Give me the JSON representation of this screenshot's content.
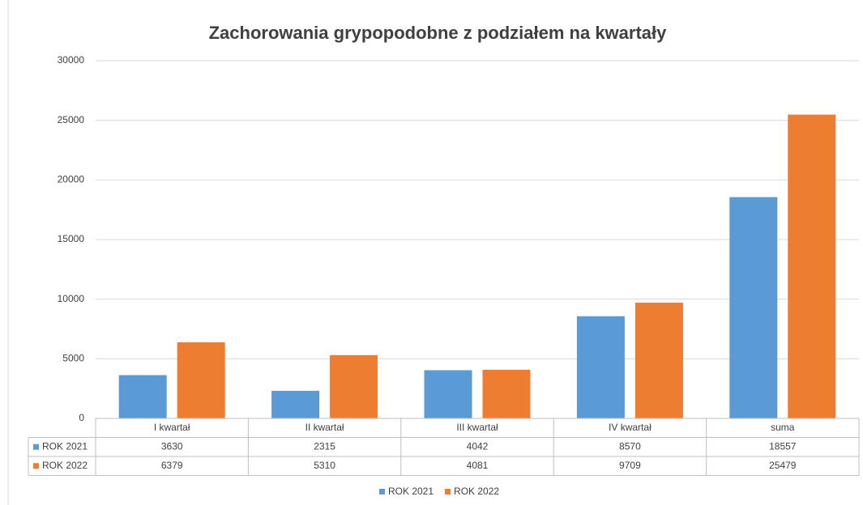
{
  "chart_data": {
    "type": "bar",
    "title": "Zachorowania grypopodobne z podziałem na kwartały",
    "categories": [
      "I kwartał",
      "II kwartał",
      "III kwartał",
      "IV kwartał",
      "suma"
    ],
    "series": [
      {
        "name": "ROK 2021",
        "color": "#5b9bd5",
        "values": [
          3630,
          2315,
          4042,
          8570,
          18557
        ]
      },
      {
        "name": "ROK 2022",
        "color": "#ed7d31",
        "values": [
          6379,
          5310,
          4081,
          9709,
          25479
        ]
      }
    ],
    "ylim": [
      0,
      30000
    ],
    "yticks": [
      0,
      5000,
      10000,
      15000,
      20000,
      25000,
      30000
    ],
    "grid": true,
    "legend": "bottom"
  }
}
